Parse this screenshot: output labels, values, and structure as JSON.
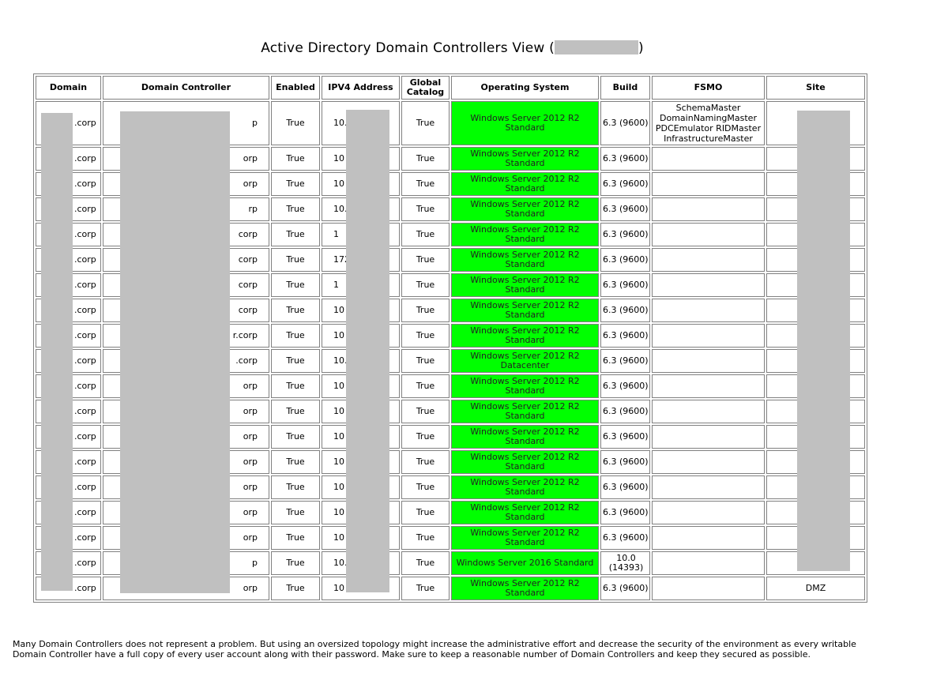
{
  "title_prefix": "Active Directory Domain Controllers View (",
  "title_suffix": ")",
  "headers": {
    "domain": "Domain",
    "dc": "Domain Controller",
    "enabled": "Enabled",
    "ip": "IPV4 Address",
    "gc_line1": "Global",
    "gc_line2": "Catalog",
    "os": "Operating System",
    "build": "Build",
    "fsmo": "FSMO",
    "site": "Site"
  },
  "fsmo_roles": [
    "SchemaMaster",
    "DomainNamingMaster",
    "PDCEmulator RIDMaster",
    "InfrastructureMaster"
  ],
  "rows": [
    {
      "domain": ".corp",
      "dc": "p",
      "enabled": "True",
      "ip": "10.",
      "gc": "True",
      "os1": "Windows Server 2012 R2",
      "os2": "Standard",
      "build": "6.3 (9600)",
      "site": ""
    },
    {
      "domain": ".corp",
      "dc": "orp",
      "enabled": "True",
      "ip": "10",
      "gc": "True",
      "os1": "Windows Server 2012 R2",
      "os2": "Standard",
      "build": "6.3 (9600)",
      "site": ""
    },
    {
      "domain": ".corp",
      "dc": "orp",
      "enabled": "True",
      "ip": "10",
      "gc": "True",
      "os1": "Windows Server 2012 R2",
      "os2": "Standard",
      "build": "6.3 (9600)",
      "site": ""
    },
    {
      "domain": ".corp",
      "dc": "rp",
      "enabled": "True",
      "ip": "10.",
      "gc": "True",
      "os1": "Windows Server 2012 R2",
      "os2": "Standard",
      "build": "6.3 (9600)",
      "site": ""
    },
    {
      "domain": ".corp",
      "dc": "corp",
      "enabled": "True",
      "ip": "1",
      "gc": "True",
      "os1": "Windows Server 2012 R2",
      "os2": "Standard",
      "build": "6.3 (9600)",
      "site": ""
    },
    {
      "domain": ".corp",
      "dc": "corp",
      "enabled": "True",
      "ip": "172",
      "gc": "True",
      "os1": "Windows Server 2012 R2",
      "os2": "Standard",
      "build": "6.3 (9600)",
      "site": ""
    },
    {
      "domain": ".corp",
      "dc": "corp",
      "enabled": "True",
      "ip": "1",
      "gc": "True",
      "os1": "Windows Server 2012 R2",
      "os2": "Standard",
      "build": "6.3 (9600)",
      "site": ""
    },
    {
      "domain": ".corp",
      "dc": "corp",
      "enabled": "True",
      "ip": "10",
      "gc": "True",
      "os1": "Windows Server 2012 R2",
      "os2": "Standard",
      "build": "6.3 (9600)",
      "site": ""
    },
    {
      "domain": ".corp",
      "dc": "R                                        r.corp",
      "enabled": "True",
      "ip": "10",
      "gc": "True",
      "os1": "Windows Server 2012 R2",
      "os2": "Standard",
      "build": "6.3 (9600)",
      "site": ""
    },
    {
      "domain": ".corp",
      "dc": ".corp",
      "enabled": "True",
      "ip": "10.",
      "gc": "True",
      "os1": "Windows Server 2012 R2",
      "os2": "Datacenter",
      "build": "6.3 (9600)",
      "site": ""
    },
    {
      "domain": ".corp",
      "dc": "orp",
      "enabled": "True",
      "ip": "10",
      "gc": "True",
      "os1": "Windows Server 2012 R2",
      "os2": "Standard",
      "build": "6.3 (9600)",
      "site": ""
    },
    {
      "domain": ".corp",
      "dc": "orp",
      "enabled": "True",
      "ip": "10",
      "gc": "True",
      "os1": "Windows Server 2012 R2",
      "os2": "Standard",
      "build": "6.3 (9600)",
      "site": ""
    },
    {
      "domain": ".corp",
      "dc": "orp",
      "enabled": "True",
      "ip": "10",
      "gc": "True",
      "os1": "Windows Server 2012 R2",
      "os2": "Standard",
      "build": "6.3 (9600)",
      "site": ""
    },
    {
      "domain": ".corp",
      "dc": "orp",
      "enabled": "True",
      "ip": "10",
      "gc": "True",
      "os1": "Windows Server 2012 R2",
      "os2": "Standard",
      "build": "6.3 (9600)",
      "site": ""
    },
    {
      "domain": ".corp",
      "dc": "orp",
      "enabled": "True",
      "ip": "10",
      "gc": "True",
      "os1": "Windows Server 2012 R2",
      "os2": "Standard",
      "build": "6.3 (9600)",
      "site": ""
    },
    {
      "domain": ".corp",
      "dc": "orp",
      "enabled": "True",
      "ip": "10",
      "gc": "True",
      "os1": "Windows Server 2012 R2",
      "os2": "Standard",
      "build": "6.3 (9600)",
      "site": ""
    },
    {
      "domain": ".corp",
      "dc": "orp",
      "enabled": "True",
      "ip": "10",
      "gc": "True",
      "os1": "Windows Server 2012 R2",
      "os2": "Standard",
      "build": "6.3 (9600)",
      "site": ""
    },
    {
      "domain": ".corp",
      "dc": "p",
      "enabled": "True",
      "ip": "10.",
      "gc": "True",
      "os1": "Windows Server 2016 Standard",
      "os2": "",
      "build": "10.0 (14393)",
      "site": ""
    },
    {
      "domain": ".corp",
      "dc": "orp",
      "enabled": "True",
      "ip": "10",
      "gc": "True",
      "os1": "Windows Server 2012 R2",
      "os2": "Standard",
      "build": "6.3 (9600)",
      "site": "DMZ"
    }
  ],
  "footer": "Many Domain Controllers does not represent a problem. But using an oversized topology might increase the administrative effort and decrease the security of the environment as every writable Domain Controller have a full copy of every user account along with their password. Make sure to keep a reasonable number of Domain Controllers and keep they secured as possible.",
  "colors": {
    "os_ok": "#00ff00",
    "redaction": "#c0c0c0",
    "border": "#808080"
  }
}
